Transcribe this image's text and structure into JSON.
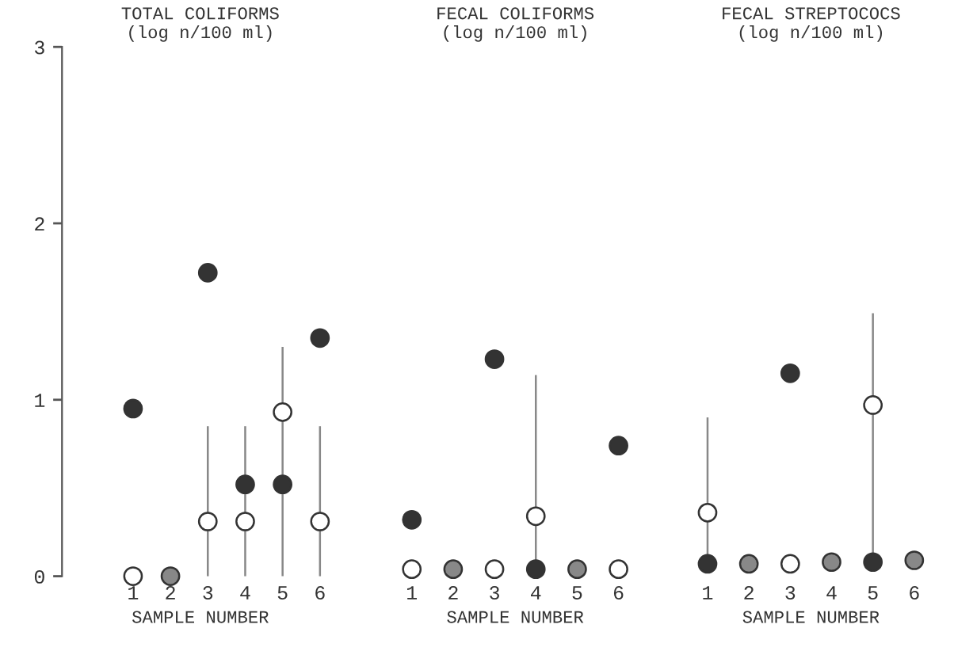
{
  "chart_data": [
    {
      "type": "scatter",
      "title": "TOTAL COLIFORMS\n(log n/100 ml)",
      "xlabel": "SAMPLE NUMBER",
      "categories": [
        "1",
        "2",
        "3",
        "4",
        "5",
        "6"
      ],
      "ylim": [
        0,
        3
      ],
      "yticks": [
        0,
        1,
        2,
        3
      ],
      "grid": false,
      "marker": "circle",
      "series": [
        {
          "color": "#333333",
          "values": [
            0.95,
            null,
            1.72,
            0.52,
            0.52,
            1.35
          ]
        },
        {
          "color": "#ffffff",
          "values": [
            0,
            null,
            0.31,
            0.31,
            0.93,
            0.31
          ],
          "errors": [
            null,
            null,
            [
              0,
              0.85
            ],
            [
              0,
              0.85
            ],
            [
              0,
              1.3
            ],
            [
              0,
              0.85
            ]
          ]
        },
        {
          "color": "#888888",
          "values": [
            null,
            0,
            null,
            null,
            null,
            null
          ]
        }
      ]
    },
    {
      "type": "scatter",
      "title": "FECAL COLIFORMS\n(log n/100 ml)",
      "xlabel": "SAMPLE NUMBER",
      "categories": [
        "1",
        "2",
        "3",
        "4",
        "5",
        "6"
      ],
      "ylim": [
        0,
        3
      ],
      "tick_labels": "x",
      "grid": false,
      "marker": "circle",
      "series": [
        {
          "color": "#333333",
          "values": [
            0.32,
            null,
            1.23,
            0.04,
            null,
            0.74
          ],
          "errors": [
            null,
            null,
            null,
            [
              0.04,
              1.14
            ],
            null,
            null
          ]
        },
        {
          "color": "#ffffff",
          "values": [
            0.04,
            null,
            0.04,
            0.34,
            null,
            0.04
          ]
        },
        {
          "color": "#888888",
          "values": [
            null,
            0.04,
            null,
            null,
            0.04,
            null
          ]
        }
      ]
    },
    {
      "type": "scatter",
      "title": "FECAL STREPTOCOCS\n(log n/100 ml)",
      "xlabel": "SAMPLE NUMBER",
      "categories": [
        "1",
        "2",
        "3",
        "4",
        "5",
        "6"
      ],
      "ylim": [
        0,
        3
      ],
      "tick_labels": "x",
      "grid": false,
      "marker": "circle",
      "series": [
        {
          "color": "#333333",
          "values": [
            0.07,
            null,
            1.15,
            null,
            0.08,
            null
          ],
          "errors": [
            [
              0.07,
              0.9
            ],
            null,
            null,
            null,
            [
              0.08,
              1.49
            ],
            null
          ]
        },
        {
          "color": "#ffffff",
          "values": [
            0.36,
            null,
            0.07,
            null,
            0.97,
            null
          ]
        },
        {
          "color": "#888888",
          "values": [
            null,
            0.07,
            null,
            0.08,
            null,
            0.09
          ]
        }
      ]
    }
  ]
}
